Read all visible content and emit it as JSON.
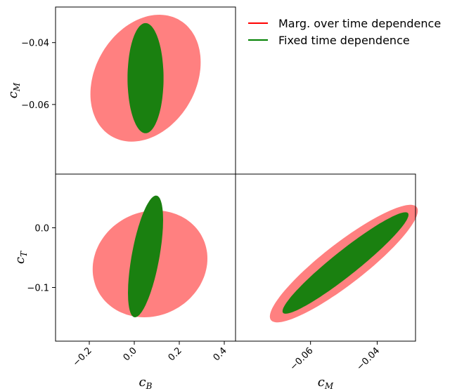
{
  "chart_data": {
    "type": "triangle-contour",
    "legend": {
      "placement": "top-right",
      "entries": [
        {
          "label": "Marg. over time dependence",
          "color": "#ff0000"
        },
        {
          "label": "Fixed time dependence",
          "color": "#008000"
        }
      ]
    },
    "colors": {
      "marg_fill": "#ff8080",
      "fixed_fill": "#1a8010"
    },
    "params": {
      "cB": {
        "label": "c",
        "sub": "B",
        "range": [
          -0.35,
          0.45
        ],
        "ticks": [
          -0.2,
          0.0,
          0.2,
          0.4
        ],
        "tick_labels": [
          "−0.2",
          "0.0",
          "0.2",
          "0.4"
        ]
      },
      "cM": {
        "label": "c",
        "sub": "M",
        "range": [
          -0.0825,
          -0.0285
        ],
        "ticks": [
          -0.06,
          -0.04
        ],
        "tick_labels": [
          "−0.06",
          "−0.04"
        ]
      },
      "cT": {
        "label": "c",
        "sub": "T",
        "range": [
          -0.19,
          0.09
        ],
        "ticks": [
          -0.1,
          0.0
        ],
        "tick_labels": [
          "−0.1",
          "0.0"
        ]
      }
    },
    "panels": [
      {
        "id": "cB-cM",
        "x": "cB",
        "y": "cM",
        "marg": {
          "center": [
            0.05,
            -0.0515
          ],
          "half_width_x": 0.245,
          "half_width_y": 0.0205,
          "corr": 0.25
        },
        "fixed": {
          "center": [
            0.05,
            -0.0515
          ],
          "half_width_x": 0.08,
          "half_width_y": 0.0178,
          "corr": 0.0
        }
      },
      {
        "id": "cB-cT",
        "x": "cB",
        "y": "cT",
        "marg": {
          "center": [
            0.07,
            -0.0605
          ],
          "half_width_x": 0.255,
          "half_width_y": 0.0895,
          "corr": 0.1
        },
        "fixed": {
          "center": [
            0.05,
            -0.048
          ],
          "half_width_x": 0.078,
          "half_width_y": 0.102,
          "corr": 0.6
        }
      },
      {
        "id": "cM-cT",
        "x": "cM",
        "y": "cT",
        "marg": {
          "center": [
            -0.05,
            -0.06
          ],
          "half_width_x": 0.0222,
          "half_width_y": 0.0985,
          "corr": 0.9
        },
        "fixed": {
          "center": [
            -0.0495,
            -0.059
          ],
          "half_width_x": 0.0189,
          "half_width_y": 0.085,
          "corr": 0.95
        }
      }
    ]
  }
}
